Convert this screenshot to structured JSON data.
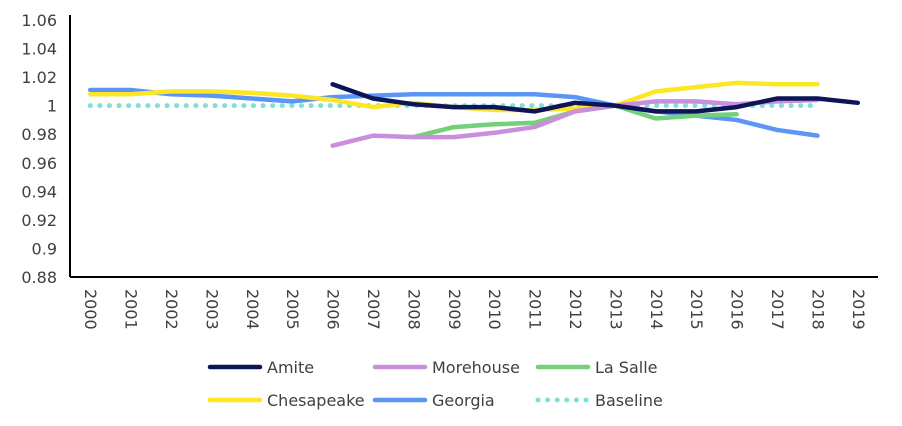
{
  "chart_data": {
    "type": "line",
    "title": "",
    "xlabel": "",
    "ylabel": "",
    "categories": [
      "2000",
      "2001",
      "2002",
      "2003",
      "2004",
      "2005",
      "2006",
      "2007",
      "2008",
      "2009",
      "2010",
      "2011",
      "2012",
      "2013",
      "2014",
      "2015",
      "2016",
      "2017",
      "2018",
      "2019"
    ],
    "ylim": [
      0.88,
      1.06
    ],
    "yticks": [
      "0.88",
      "0.9",
      "0.92",
      "0.94",
      "0.96",
      "0.98",
      "1",
      "1.02",
      "1.04",
      "1.06"
    ],
    "grid": false,
    "legend_position": "bottom",
    "series": [
      {
        "name": "Amite",
        "color": "#0d1457",
        "dash": false,
        "values": [
          null,
          null,
          null,
          null,
          null,
          null,
          1.015,
          1.005,
          1.001,
          0.999,
          0.999,
          0.996,
          1.002,
          1.0,
          0.996,
          0.996,
          0.999,
          1.005,
          1.005,
          1.002
        ]
      },
      {
        "name": "Morehouse",
        "color": "#c98fdd",
        "dash": false,
        "values": [
          null,
          null,
          null,
          null,
          null,
          null,
          0.972,
          0.979,
          0.978,
          0.978,
          0.981,
          0.985,
          0.996,
          1.0,
          1.003,
          1.003,
          1.001,
          1.003,
          1.004,
          null
        ]
      },
      {
        "name": "La Salle",
        "color": "#74d07a",
        "dash": false,
        "values": [
          null,
          null,
          null,
          null,
          null,
          null,
          null,
          null,
          0.978,
          0.985,
          0.987,
          0.988,
          0.996,
          1.0,
          0.991,
          0.993,
          0.994,
          null,
          null,
          null
        ]
      },
      {
        "name": "Chesapeake",
        "color": "#fde725",
        "dash": false,
        "values": [
          1.008,
          1.008,
          1.01,
          1.01,
          1.009,
          1.007,
          1.004,
          0.999,
          1.002,
          0.999,
          0.997,
          0.997,
          0.998,
          1.0,
          1.01,
          1.013,
          1.016,
          1.015,
          1.015,
          null
        ]
      },
      {
        "name": "Georgia",
        "color": "#5b95f5",
        "dash": false,
        "values": [
          1.011,
          1.011,
          1.008,
          1.007,
          1.005,
          1.003,
          1.006,
          1.007,
          1.008,
          1.008,
          1.008,
          1.008,
          1.006,
          1.0,
          0.996,
          0.993,
          0.99,
          0.983,
          0.979,
          null
        ]
      },
      {
        "name": "Baseline",
        "color": "#7fe0d8",
        "dash": true,
        "values": [
          1,
          1,
          1,
          1,
          1,
          1,
          1,
          1,
          1,
          1,
          1,
          1,
          1,
          1,
          1,
          1,
          1,
          1,
          1,
          null
        ]
      }
    ]
  }
}
